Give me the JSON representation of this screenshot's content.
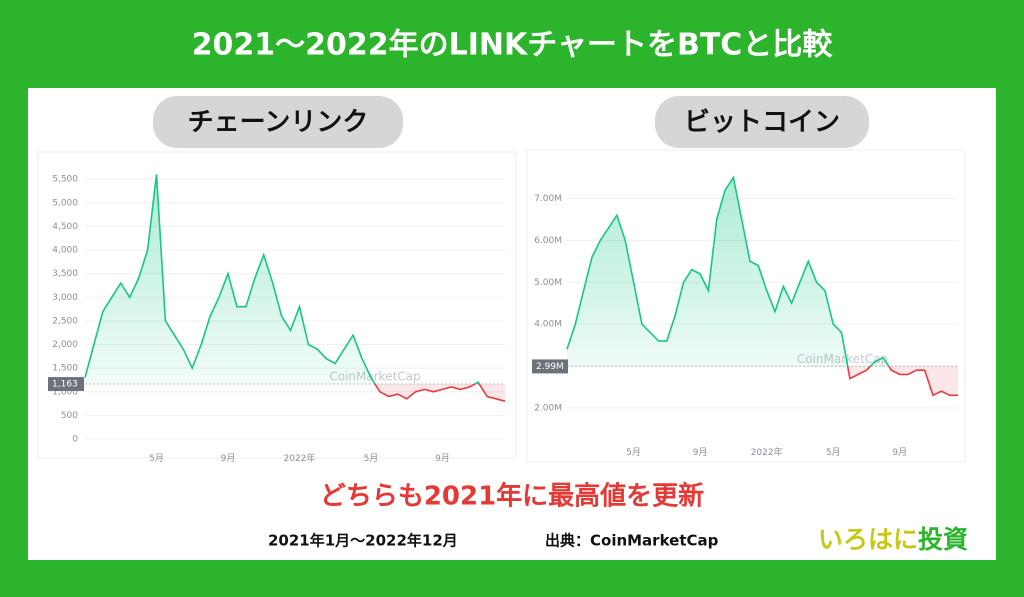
{
  "header": {
    "title": "2021〜2022年のLINKチャートをBTCと比較"
  },
  "chart_data": [
    {
      "type": "line",
      "title": "チェーンリンク",
      "watermark": "CoinMarketCap",
      "categories": [
        null,
        null,
        null,
        null,
        null,
        null,
        null,
        null,
        "5月",
        null,
        null,
        null,
        null,
        null,
        null,
        null,
        "9月",
        null,
        null,
        null,
        null,
        null,
        null,
        null,
        "2022年",
        null,
        null,
        null,
        null,
        null,
        null,
        null,
        "5月",
        null,
        null,
        null,
        null,
        null,
        null,
        null,
        "9月",
        null,
        null,
        null,
        null,
        null,
        null,
        null
      ],
      "values": [
        1300,
        2000,
        2700,
        3000,
        3300,
        3000,
        3400,
        4000,
        5600,
        2500,
        2200,
        1900,
        1500,
        2000,
        2600,
        3000,
        3500,
        2800,
        2800,
        3400,
        3900,
        3300,
        2600,
        2300,
        2800,
        2000,
        1900,
        1700,
        1600,
        1900,
        2200,
        1700,
        1300,
        1000,
        900,
        950,
        850,
        1000,
        1050,
        1000,
        1050,
        1100,
        1050,
        1100,
        1200,
        900,
        850,
        800
      ],
      "ylim": [
        0,
        5800
      ],
      "yticks": [
        0,
        500,
        {
          "value": 1000,
          "label": "1,000"
        },
        {
          "value": 1500,
          "label": "1,500"
        },
        {
          "value": 2000,
          "label": "2,000"
        },
        {
          "value": 2500,
          "label": "2,500"
        },
        {
          "value": 3000,
          "label": "3,000"
        },
        {
          "value": 3500,
          "label": "3,500"
        },
        {
          "value": 4000,
          "label": "4,000"
        },
        {
          "value": 4500,
          "label": "4,500"
        },
        {
          "value": 5000,
          "label": "5,000"
        },
        {
          "value": 5500,
          "label": "5,500"
        }
      ],
      "reference_line": {
        "value": 1163,
        "label": "1,163"
      },
      "color_above": "#16c784",
      "color_below": "#ea3943",
      "grid": true
    },
    {
      "type": "line",
      "title": "ビットコイン",
      "watermark": "CoinMarketCap",
      "categories": [
        null,
        null,
        null,
        null,
        null,
        null,
        null,
        null,
        "5月",
        null,
        null,
        null,
        null,
        null,
        null,
        null,
        "9月",
        null,
        null,
        null,
        null,
        null,
        null,
        null,
        "2022年",
        null,
        null,
        null,
        null,
        null,
        null,
        null,
        "5月",
        null,
        null,
        null,
        null,
        null,
        null,
        null,
        "9月",
        null,
        null,
        null,
        null,
        null,
        null,
        null
      ],
      "values": [
        3400000,
        4000000,
        4800000,
        5600000,
        6000000,
        6300000,
        6600000,
        6000000,
        5000000,
        4000000,
        3800000,
        3600000,
        3600000,
        4200000,
        5000000,
        5300000,
        5200000,
        4800000,
        6500000,
        7200000,
        7500000,
        6500000,
        5500000,
        5400000,
        4800000,
        4300000,
        4900000,
        4500000,
        5000000,
        5500000,
        5000000,
        4800000,
        4000000,
        3800000,
        2700000,
        2800000,
        2900000,
        3100000,
        3200000,
        2900000,
        2800000,
        2800000,
        2900000,
        2900000,
        2300000,
        2400000,
        2300000,
        2300000
      ],
      "ylim": [
        1400000,
        7800000
      ],
      "yticks": [
        {
          "value": 2000000,
          "label": "2.00M"
        },
        {
          "value": 3000000,
          "label": "3.00M"
        },
        {
          "value": 4000000,
          "label": "4.00M"
        },
        {
          "value": 5000000,
          "label": "5.00M"
        },
        {
          "value": 6000000,
          "label": "6.00M"
        },
        {
          "value": 7000000,
          "label": "7.00M"
        }
      ],
      "reference_line": {
        "value": 2990000,
        "label": "2.99M"
      },
      "color_above": "#16c784",
      "color_below": "#ea3943",
      "grid": true
    }
  ],
  "footer": {
    "headline": "どちらも2021年に最高値を更新",
    "period": "2021年1月〜2022年12月",
    "source": "出典：CoinMarketCap",
    "brand_a": "いろはに",
    "brand_b": "投資"
  }
}
